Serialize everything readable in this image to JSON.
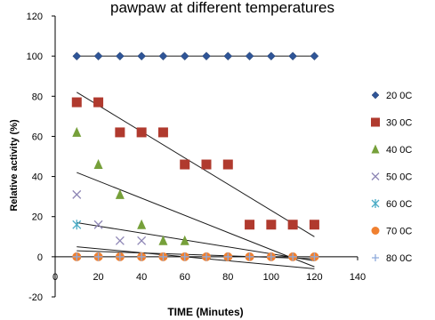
{
  "chart_data": {
    "type": "scatter",
    "title": "pawpaw at different temperatures",
    "xlabel": "TIME (Minutes)",
    "ylabel": "Relative activity (%)",
    "xlim": [
      0,
      140
    ],
    "ylim": [
      -20,
      120
    ],
    "x_ticks": [
      0,
      20,
      40,
      60,
      80,
      100,
      120,
      140
    ],
    "y_ticks": [
      -20,
      0,
      20,
      40,
      60,
      80,
      100,
      120
    ],
    "grid": false,
    "legend_position": "right",
    "series": [
      {
        "name": "20 0C",
        "marker": "diamond",
        "color": "#2f5597",
        "connected": true,
        "x": [
          10,
          20,
          30,
          40,
          50,
          60,
          70,
          80,
          90,
          100,
          110,
          120
        ],
        "y": [
          100,
          100,
          100,
          100,
          100,
          100,
          100,
          100,
          100,
          100,
          100,
          100
        ]
      },
      {
        "name": "30 0C",
        "marker": "square",
        "color": "#b03a2e",
        "trend": true,
        "x": [
          10,
          20,
          30,
          40,
          50,
          60,
          70,
          80,
          90,
          100,
          110,
          120
        ],
        "y": [
          77,
          77,
          62,
          62,
          62,
          46,
          46,
          46,
          16,
          16,
          16,
          16
        ]
      },
      {
        "name": "40 0C",
        "marker": "triangle",
        "color": "#76a03a",
        "trend": true,
        "x": [
          10,
          20,
          30,
          40,
          50,
          60
        ],
        "y": [
          62,
          46,
          31,
          16,
          8,
          8
        ]
      },
      {
        "name": "50 0C",
        "marker": "x",
        "color": "#8e86b5",
        "trend": true,
        "x": [
          10,
          20,
          30,
          40
        ],
        "y": [
          31,
          16,
          8,
          8
        ]
      },
      {
        "name": "60 0C",
        "marker": "star",
        "color": "#4bacc6",
        "trend": true,
        "x": [
          10
        ],
        "y": [
          16
        ]
      },
      {
        "name": "70 0C",
        "marker": "circle",
        "color": "#f08030",
        "trend": true,
        "x": [
          10,
          20,
          30,
          40,
          50,
          60,
          70,
          80,
          90,
          100,
          110,
          120
        ],
        "y": [
          0,
          0,
          0,
          0,
          0,
          0,
          0,
          0,
          0,
          0,
          0,
          0
        ]
      },
      {
        "name": "80 0C",
        "marker": "plus",
        "color": "#8faadc",
        "x": [
          10,
          20,
          30,
          40,
          50,
          60,
          70,
          80,
          90,
          100,
          110,
          120
        ],
        "y": [
          0,
          0,
          0,
          0,
          0,
          0,
          0,
          0,
          0,
          0,
          0,
          0
        ]
      }
    ],
    "trendlines": [
      {
        "series": "30 0C",
        "x": [
          10,
          120
        ],
        "y": [
          82,
          10
        ]
      },
      {
        "series": "40 0C",
        "x": [
          10,
          120
        ],
        "y": [
          42,
          -5
        ]
      },
      {
        "series": "50 0C",
        "x": [
          10,
          120
        ],
        "y": [
          17,
          -2
        ]
      },
      {
        "series": "60 0C",
        "x": [
          10,
          120
        ],
        "y": [
          5,
          -6
        ]
      },
      {
        "series": "70 0C",
        "x": [
          10,
          120
        ],
        "y": [
          3,
          -1
        ]
      }
    ]
  }
}
